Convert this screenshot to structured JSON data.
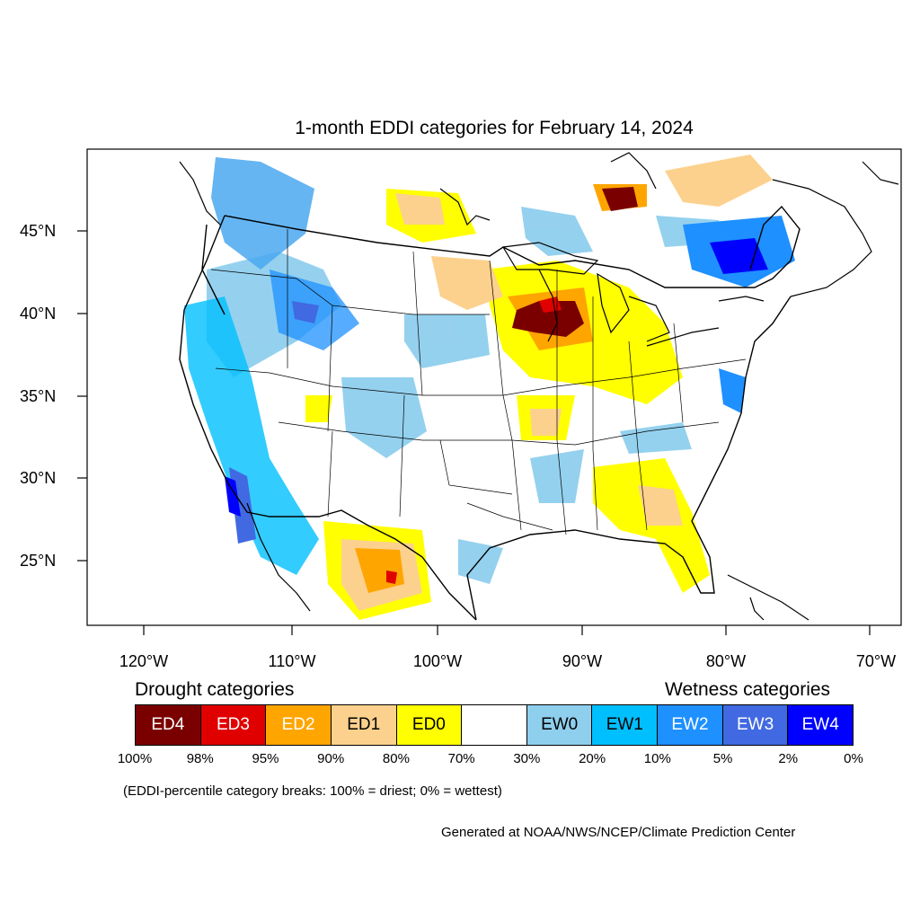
{
  "title": "1-month EDDI categories for February 14, 2024",
  "lat_labels": [
    "45°N",
    "40°N",
    "35°N",
    "30°N",
    "25°N"
  ],
  "lon_labels": [
    "120°W",
    "110°W",
    "100°W",
    "90°W",
    "80°W",
    "70°W"
  ],
  "legend": {
    "drought_heading": "Drought categories",
    "wetness_heading": "Wetness categories",
    "categories": [
      {
        "label": "ED4",
        "color": "#7a0000",
        "text_color": "#ffffff"
      },
      {
        "label": "ED3",
        "color": "#e00000",
        "text_color": "#ffffff"
      },
      {
        "label": "ED2",
        "color": "#ffa500",
        "text_color": "#ffffff"
      },
      {
        "label": "ED1",
        "color": "#fcd18d",
        "text_color": "#000000"
      },
      {
        "label": "ED0",
        "color": "#ffff00",
        "text_color": "#000000"
      },
      {
        "label": "",
        "color": "#ffffff",
        "text_color": "#000000"
      },
      {
        "label": "EW0",
        "color": "#8fcfee",
        "text_color": "#000000"
      },
      {
        "label": "EW1",
        "color": "#00bfff",
        "text_color": "#000000"
      },
      {
        "label": "EW2",
        "color": "#1e90ff",
        "text_color": "#ffffff"
      },
      {
        "label": "EW3",
        "color": "#4169e1",
        "text_color": "#ffffff"
      },
      {
        "label": "EW4",
        "color": "#0000ff",
        "text_color": "#ffffff"
      }
    ],
    "percentiles": [
      "100%",
      "98%",
      "95%",
      "90%",
      "80%",
      "70%",
      "30%",
      "20%",
      "10%",
      "5%",
      "2%",
      "0%"
    ]
  },
  "note": "(EDDI-percentile category breaks: 100% = driest; 0% = wettest)",
  "credit": "Generated at NOAA/NWS/NCEP/Climate Prediction Center"
}
